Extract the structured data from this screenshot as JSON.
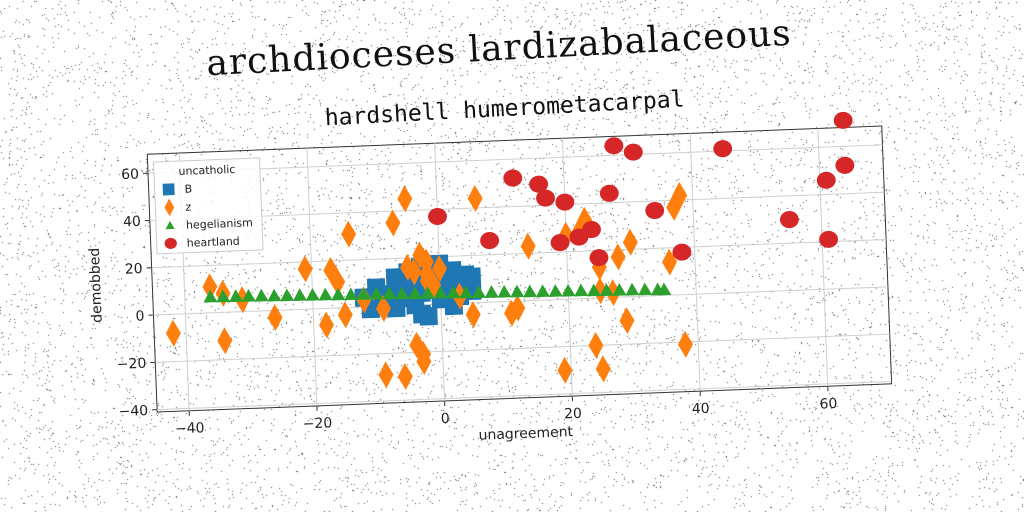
{
  "suptitle": "archdioceses lardizabalaceous",
  "chart_data": {
    "type": "scatter",
    "title": "hardshell humerometacarpal",
    "xlabel": "unagreement",
    "ylabel": "demobbed",
    "xlim": [
      -45,
      70
    ],
    "ylim": [
      -41,
      68
    ],
    "xticks": [
      -40,
      -20,
      0,
      20,
      40,
      60
    ],
    "yticks": [
      -40,
      -20,
      0,
      20,
      40,
      60
    ],
    "grid": true,
    "legend": {
      "title": "uncatholic",
      "placement": "top-left"
    },
    "series": [
      {
        "name": "B",
        "marker": "square",
        "color": "#1f77b4",
        "points": [
          [
            -12,
            4
          ],
          [
            -11,
            -1
          ],
          [
            -10,
            8
          ],
          [
            -9,
            2
          ],
          [
            -8,
            5
          ],
          [
            -7,
            -1
          ],
          [
            -7,
            12
          ],
          [
            -6,
            7
          ],
          [
            -5,
            3
          ],
          [
            -5,
            14
          ],
          [
            -4,
            9
          ],
          [
            -4,
            0
          ],
          [
            -3,
            5
          ],
          [
            -3,
            -4
          ],
          [
            -3,
            16
          ],
          [
            -2,
            10
          ],
          [
            -2,
            -5
          ],
          [
            -1,
            6
          ],
          [
            -1,
            13
          ],
          [
            0,
            2
          ],
          [
            0,
            17
          ],
          [
            0,
            8
          ],
          [
            1,
            11
          ],
          [
            1,
            4
          ],
          [
            2,
            -1
          ],
          [
            2,
            14
          ],
          [
            3,
            7
          ],
          [
            3,
            3
          ],
          [
            4,
            12
          ],
          [
            4,
            8
          ],
          [
            5,
            5
          ],
          [
            5,
            11
          ]
        ]
      },
      {
        "name": "z",
        "marker": "diamond",
        "color": "#ff7f0e",
        "points": [
          [
            -42,
            -8
          ],
          [
            -36,
            11
          ],
          [
            -34,
            -12
          ],
          [
            -34,
            8
          ],
          [
            -31,
            5
          ],
          [
            -26,
            -3
          ],
          [
            -21,
            17
          ],
          [
            -18,
            -7
          ],
          [
            -17,
            16
          ],
          [
            -16,
            11
          ],
          [
            -15,
            -3
          ],
          [
            -14,
            31
          ],
          [
            -12,
            3
          ],
          [
            -9,
            -1
          ],
          [
            -9,
            -29
          ],
          [
            -7,
            35
          ],
          [
            -6,
            -30
          ],
          [
            -5,
            16
          ],
          [
            -5,
            45
          ],
          [
            -4,
            14
          ],
          [
            -4,
            -17
          ],
          [
            -3,
            21
          ],
          [
            -3,
            -21
          ],
          [
            -3,
            -24
          ],
          [
            -2,
            13
          ],
          [
            -2,
            10
          ],
          [
            -2,
            18
          ],
          [
            -1,
            8
          ],
          [
            0,
            15
          ],
          [
            3,
            3
          ],
          [
            5,
            -5
          ],
          [
            6,
            44
          ],
          [
            11,
            -5
          ],
          [
            12,
            -3
          ],
          [
            14,
            23
          ],
          [
            19,
            -30
          ],
          [
            20,
            27
          ],
          [
            22,
            28
          ],
          [
            23,
            33
          ],
          [
            24,
            -20
          ],
          [
            25,
            -30
          ],
          [
            25,
            13
          ],
          [
            25,
            3
          ],
          [
            27,
            2
          ],
          [
            28,
            17
          ],
          [
            29,
            -10
          ],
          [
            30,
            23
          ],
          [
            36,
            14
          ],
          [
            37,
            37
          ],
          [
            38,
            42
          ],
          [
            38,
            -21
          ]
        ]
      },
      {
        "name": "hegelianism",
        "marker": "triangle",
        "color": "#2ca02c",
        "points": [
          [
            -36,
            6.8
          ],
          [
            -34,
            6.7
          ],
          [
            -32,
            6.6
          ],
          [
            -30,
            6.5
          ],
          [
            -28,
            6.4
          ],
          [
            -26,
            6.2
          ],
          [
            -24,
            6.1
          ],
          [
            -22,
            6.0
          ],
          [
            -20,
            5.9
          ],
          [
            -18,
            5.8
          ],
          [
            -16,
            5.6
          ],
          [
            -14,
            5.5
          ],
          [
            -12,
            5.4
          ],
          [
            -10,
            5.3
          ],
          [
            -8,
            5.2
          ],
          [
            -6,
            5.0
          ],
          [
            -4,
            4.9
          ],
          [
            -2,
            4.8
          ],
          [
            0,
            4.7
          ],
          [
            2,
            4.6
          ],
          [
            4,
            4.4
          ],
          [
            6,
            4.3
          ],
          [
            8,
            4.2
          ],
          [
            10,
            4.1
          ],
          [
            12,
            4.0
          ],
          [
            14,
            3.8
          ],
          [
            16,
            3.7
          ],
          [
            18,
            3.6
          ],
          [
            20,
            3.5
          ],
          [
            22,
            3.4
          ],
          [
            24,
            3.2
          ],
          [
            26,
            3.1
          ],
          [
            28,
            3.0
          ],
          [
            30,
            2.9
          ],
          [
            32,
            2.8
          ],
          [
            34,
            2.6
          ],
          [
            35,
            2.5
          ]
        ]
      },
      {
        "name": "heartland",
        "marker": "circle",
        "color": "#d62728",
        "points": [
          [
            0,
            37
          ],
          [
            8,
            26
          ],
          [
            12,
            52
          ],
          [
            16,
            49
          ],
          [
            17,
            43
          ],
          [
            19,
            24
          ],
          [
            20,
            41
          ],
          [
            22,
            26
          ],
          [
            24,
            29
          ],
          [
            25,
            17
          ],
          [
            27,
            44
          ],
          [
            28,
            64
          ],
          [
            31,
            61
          ],
          [
            34,
            36
          ],
          [
            38,
            18
          ],
          [
            45,
            61
          ],
          [
            55,
            30
          ],
          [
            61,
            21
          ],
          [
            61,
            46
          ],
          [
            64,
            71
          ],
          [
            64,
            52
          ]
        ]
      }
    ]
  }
}
